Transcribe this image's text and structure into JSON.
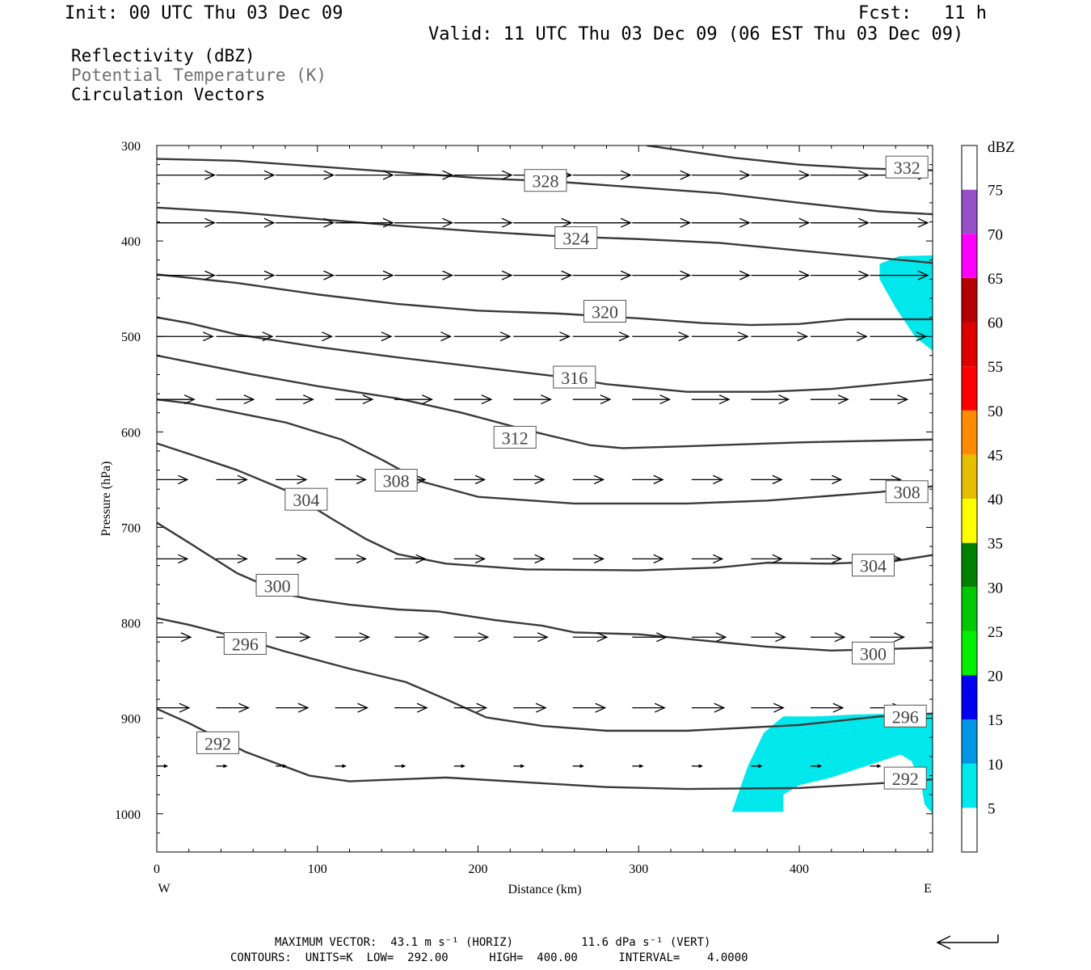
{
  "header": {
    "init": "Init: 00 UTC Thu 03 Dec 09",
    "fcst": "Fcst:   11 h",
    "valid": "Valid: 11 UTC Thu 03 Dec 09 (06 EST Thu 03 Dec 09)"
  },
  "legend": {
    "line1": "Reflectivity (dBZ)",
    "line2": "Potential Temperature (K)",
    "line3": "Circulation Vectors"
  },
  "footer": {
    "max_vector": "MAXIMUM VECTOR:  43.1 m s⁻¹ (HORIZ)          11.6 dPa s⁻¹ (VERT)",
    "contours": "CONTOURS:  UNITS=K  LOW=  292.00      HIGH=  400.00      INTERVAL=    4.0000"
  },
  "colors": {
    "contour": "#3a3a3a",
    "reflectivity_5_10": "#00e8ec",
    "frame": "#000000"
  },
  "chart_data": {
    "type": "contour-cross-section",
    "xlabel": "Distance (km)",
    "ylabel": "Pressure (hPa)",
    "x_tick_labels": [
      "0",
      "100",
      "200",
      "300",
      "400"
    ],
    "y_tick_labels": [
      "300",
      "400",
      "500",
      "600",
      "700",
      "800",
      "900",
      "1000"
    ],
    "x_ticks": [
      0,
      100,
      200,
      300,
      400
    ],
    "y_ticks": [
      300,
      400,
      500,
      600,
      700,
      800,
      900,
      1000
    ],
    "xlim": [
      0,
      483
    ],
    "ylim": [
      1040,
      300
    ],
    "y_scale": "linear, inverted (pressure decreasing upward)",
    "left_end_label": "W",
    "right_end_label": "E",
    "colorbar": {
      "unit": "dBZ",
      "levels": [
        "5",
        "10",
        "15",
        "20",
        "25",
        "30",
        "35",
        "40",
        "45",
        "50",
        "55",
        "60",
        "65",
        "70",
        "75"
      ],
      "bins": [
        {
          "low": 0,
          "high": 5,
          "color": "#ffffff"
        },
        {
          "low": 5,
          "high": 10,
          "color": "#00e8ec"
        },
        {
          "low": 10,
          "high": 15,
          "color": "#0096e6"
        },
        {
          "low": 15,
          "high": 20,
          "color": "#0000f0"
        },
        {
          "low": 20,
          "high": 25,
          "color": "#00f000"
        },
        {
          "low": 25,
          "high": 30,
          "color": "#00c800"
        },
        {
          "low": 30,
          "high": 35,
          "color": "#008000"
        },
        {
          "low": 35,
          "high": 40,
          "color": "#ffff00"
        },
        {
          "low": 40,
          "high": 45,
          "color": "#e6be00"
        },
        {
          "low": 45,
          "high": 50,
          "color": "#ff8c00"
        },
        {
          "low": 50,
          "high": 55,
          "color": "#ff0000"
        },
        {
          "low": 55,
          "high": 60,
          "color": "#dc0000"
        },
        {
          "low": 60,
          "high": 65,
          "color": "#b40000"
        },
        {
          "low": 65,
          "high": 70,
          "color": "#ff00ff"
        },
        {
          "low": 70,
          "high": 75,
          "color": "#9650c8"
        },
        {
          "low": 75,
          "high": 80,
          "color": "#ffffff"
        }
      ]
    },
    "theta_contours": [
      {
        "label": "292",
        "points": [
          [
            0,
            890
          ],
          [
            20,
            905
          ],
          [
            55,
            935
          ],
          [
            95,
            960
          ],
          [
            120,
            966
          ],
          [
            150,
            964
          ],
          [
            180,
            962
          ],
          [
            230,
            967
          ],
          [
            280,
            972
          ],
          [
            330,
            974
          ],
          [
            400,
            973
          ],
          [
            460,
            967
          ],
          [
            483,
            964
          ]
        ]
      },
      {
        "label": "296",
        "points": [
          [
            0,
            795
          ],
          [
            20,
            802
          ],
          [
            50,
            815
          ],
          [
            80,
            830
          ],
          [
            120,
            848
          ],
          [
            155,
            862
          ],
          [
            180,
            880
          ],
          [
            205,
            899
          ],
          [
            240,
            908
          ],
          [
            280,
            913
          ],
          [
            330,
            913
          ],
          [
            400,
            907
          ],
          [
            450,
            898
          ],
          [
            483,
            895
          ]
        ]
      },
      {
        "label": "300",
        "points": [
          [
            0,
            695
          ],
          [
            20,
            716
          ],
          [
            50,
            748
          ],
          [
            80,
            770
          ],
          [
            95,
            775
          ],
          [
            120,
            781
          ],
          [
            150,
            786
          ],
          [
            175,
            788
          ],
          [
            210,
            797
          ],
          [
            240,
            803
          ],
          [
            260,
            810
          ],
          [
            300,
            812
          ],
          [
            380,
            825
          ],
          [
            420,
            829
          ],
          [
            483,
            826
          ]
        ]
      },
      {
        "label": "304",
        "points": [
          [
            0,
            612
          ],
          [
            20,
            623
          ],
          [
            50,
            640
          ],
          [
            80,
            661
          ],
          [
            110,
            692
          ],
          [
            130,
            712
          ],
          [
            150,
            728
          ],
          [
            180,
            738
          ],
          [
            230,
            744
          ],
          [
            300,
            745
          ],
          [
            350,
            742
          ],
          [
            380,
            737
          ],
          [
            420,
            738
          ],
          [
            460,
            735
          ],
          [
            483,
            729
          ]
        ]
      },
      {
        "label": "308",
        "points": [
          [
            0,
            566
          ],
          [
            20,
            570
          ],
          [
            50,
            580
          ],
          [
            80,
            590
          ],
          [
            115,
            608
          ],
          [
            140,
            629
          ],
          [
            165,
            652
          ],
          [
            200,
            668
          ],
          [
            260,
            675
          ],
          [
            330,
            675
          ],
          [
            380,
            672
          ],
          [
            450,
            663
          ],
          [
            483,
            657
          ]
        ]
      },
      {
        "label": "312",
        "points": [
          [
            0,
            520
          ],
          [
            30,
            530
          ],
          [
            60,
            540
          ],
          [
            100,
            552
          ],
          [
            150,
            565
          ],
          [
            190,
            580
          ],
          [
            230,
            598
          ],
          [
            270,
            614
          ],
          [
            290,
            617
          ],
          [
            330,
            615
          ],
          [
            400,
            611
          ],
          [
            483,
            608
          ]
        ]
      },
      {
        "label": "316",
        "points": [
          [
            0,
            480
          ],
          [
            20,
            486
          ],
          [
            50,
            498
          ],
          [
            100,
            511
          ],
          [
            150,
            522
          ],
          [
            200,
            532
          ],
          [
            250,
            542
          ],
          [
            280,
            550
          ],
          [
            330,
            558
          ],
          [
            380,
            558
          ],
          [
            420,
            555
          ],
          [
            483,
            545
          ]
        ]
      },
      {
        "label": "320",
        "points": [
          [
            0,
            435
          ],
          [
            50,
            444
          ],
          [
            100,
            456
          ],
          [
            150,
            466
          ],
          [
            200,
            473
          ],
          [
            250,
            476
          ],
          [
            300,
            481
          ],
          [
            340,
            486
          ],
          [
            370,
            488
          ],
          [
            400,
            487
          ],
          [
            430,
            482
          ],
          [
            483,
            482
          ]
        ]
      },
      {
        "label": "324",
        "points": [
          [
            0,
            365
          ],
          [
            50,
            370
          ],
          [
            100,
            377
          ],
          [
            150,
            384
          ],
          [
            200,
            390
          ],
          [
            250,
            395
          ],
          [
            300,
            398
          ],
          [
            350,
            402
          ],
          [
            400,
            410
          ],
          [
            483,
            423
          ]
        ]
      },
      {
        "label": "328",
        "points": [
          [
            0,
            314
          ],
          [
            50,
            316
          ],
          [
            100,
            322
          ],
          [
            150,
            328
          ],
          [
            200,
            334
          ],
          [
            250,
            338
          ],
          [
            300,
            344
          ],
          [
            350,
            350
          ],
          [
            400,
            360
          ],
          [
            450,
            369
          ],
          [
            483,
            372
          ]
        ]
      },
      {
        "label": "332",
        "points": [
          [
            305,
            300
          ],
          [
            330,
            306
          ],
          [
            360,
            313
          ],
          [
            400,
            320
          ],
          [
            440,
            324
          ],
          [
            483,
            326
          ]
        ]
      }
    ],
    "contour_labels": [
      {
        "text": "328",
        "x": 242,
        "y": 337
      },
      {
        "text": "332",
        "x": 467,
        "y": 323
      },
      {
        "text": "324",
        "x": 261,
        "y": 397
      },
      {
        "text": "320",
        "x": 279,
        "y": 474
      },
      {
        "text": "316",
        "x": 260,
        "y": 543
      },
      {
        "text": "312",
        "x": 223,
        "y": 606
      },
      {
        "text": "308",
        "x": 149,
        "y": 651
      },
      {
        "text": "308",
        "x": 467,
        "y": 663
      },
      {
        "text": "304",
        "x": 93,
        "y": 671
      },
      {
        "text": "304",
        "x": 446,
        "y": 740
      },
      {
        "text": "300",
        "x": 75,
        "y": 761
      },
      {
        "text": "300",
        "x": 446,
        "y": 832
      },
      {
        "text": "296",
        "x": 55,
        "y": 822
      },
      {
        "text": "296",
        "x": 466,
        "y": 898
      },
      {
        "text": "292",
        "x": 38,
        "y": 926
      },
      {
        "text": "292",
        "x": 466,
        "y": 963
      }
    ],
    "reflectivity_regions": [
      {
        "dbz_bin": "5-10",
        "points": [
          [
            450,
            424
          ],
          [
            462,
            416
          ],
          [
            483,
            415
          ],
          [
            483,
            515
          ],
          [
            472,
            500
          ],
          [
            460,
            470
          ],
          [
            450,
            440
          ]
        ]
      },
      {
        "dbz_bin": "5-10",
        "points": [
          [
            358,
            998
          ],
          [
            368,
            950
          ],
          [
            378,
            915
          ],
          [
            390,
            898
          ],
          [
            410,
            898
          ],
          [
            435,
            896
          ],
          [
            460,
            895
          ],
          [
            483,
            895
          ],
          [
            483,
            1000
          ],
          [
            478,
            990
          ],
          [
            476,
            970
          ],
          [
            470,
            945
          ],
          [
            463,
            938
          ],
          [
            445,
            948
          ],
          [
            420,
            962
          ],
          [
            400,
            970
          ],
          [
            390,
            980
          ],
          [
            390,
            998
          ]
        ]
      }
    ],
    "vector_rows": [
      {
        "pressure": 331,
        "x_start": 0,
        "dx": 37,
        "count": 13,
        "u": 34,
        "v": 0
      },
      {
        "pressure": 381,
        "x_start": 0,
        "dx": 37,
        "count": 13,
        "u": 34,
        "v": 0
      },
      {
        "pressure": 436,
        "x_start": 0,
        "dx": 37,
        "count": 13,
        "u": 34,
        "v": 0
      },
      {
        "pressure": 500,
        "x_start": 0,
        "dx": 37,
        "count": 13,
        "u": 33,
        "v": 0
      },
      {
        "pressure": 566,
        "x_start": 0,
        "dx": 37,
        "count": 13,
        "u": 22,
        "v": 0
      },
      {
        "pressure": 650,
        "x_start": 0,
        "dx": 37,
        "count": 13,
        "u": 18,
        "v": 0
      },
      {
        "pressure": 733,
        "x_start": 0,
        "dx": 37,
        "count": 13,
        "u": 18,
        "v": 0
      },
      {
        "pressure": 815,
        "x_start": 0,
        "dx": 37,
        "count": 13,
        "u": 20,
        "v": 0
      },
      {
        "pressure": 889,
        "x_start": 0,
        "dx": 37,
        "count": 13,
        "u": 19,
        "v": 0
      },
      {
        "pressure": 950,
        "x_start": 0,
        "dx": 37,
        "count": 13,
        "u": 6,
        "v": 0
      }
    ]
  }
}
